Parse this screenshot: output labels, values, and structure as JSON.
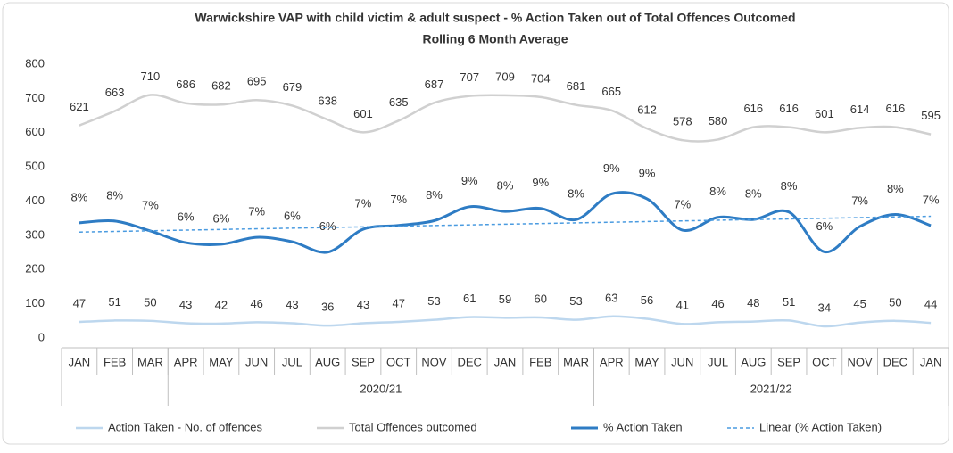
{
  "chart_data": {
    "type": "line",
    "title": "Warwickshire VAP with child victim & adult suspect - % Action Taken out of Total Offences Outcomed",
    "subtitle": "Rolling 6 Month Average",
    "categories": [
      "JAN",
      "FEB",
      "MAR",
      "APR",
      "MAY",
      "JUN",
      "JUL",
      "AUG",
      "SEP",
      "OCT",
      "NOV",
      "DEC",
      "JAN",
      "FEB",
      "MAR",
      "APR",
      "MAY",
      "JUN",
      "JUL",
      "AUG",
      "SEP",
      "OCT",
      "NOV",
      "DEC",
      "JAN"
    ],
    "groups": [
      {
        "label": "2020/21",
        "start": 3,
        "end": 14
      },
      {
        "label": "2021/22",
        "start": 15,
        "end": 24
      }
    ],
    "ylim": [
      0,
      800
    ],
    "yticks": [
      0,
      100,
      200,
      300,
      400,
      500,
      600,
      700,
      800
    ],
    "y2lim": [
      0,
      18
    ],
    "series": [
      {
        "name": "Action Taken - No. of offences",
        "color": "#bdd7ee",
        "values": [
          47,
          51,
          50,
          43,
          42,
          46,
          43,
          36,
          43,
          47,
          53,
          61,
          59,
          60,
          53,
          63,
          56,
          41,
          46,
          48,
          51,
          34,
          45,
          50,
          44
        ]
      },
      {
        "name": "Total Offences outcomed",
        "color": "#d0d0d0",
        "values": [
          621,
          663,
          710,
          686,
          682,
          695,
          679,
          638,
          601,
          635,
          687,
          707,
          709,
          704,
          681,
          665,
          612,
          578,
          580,
          616,
          616,
          601,
          614,
          616,
          595
        ]
      },
      {
        "name": "% Action Taken",
        "color": "#2e7cc4",
        "axis": "y2",
        "values": [
          7.57,
          7.69,
          7.04,
          6.27,
          6.16,
          6.62,
          6.33,
          5.64,
          7.15,
          7.4,
          7.71,
          8.63,
          8.32,
          8.52,
          7.78,
          9.47,
          9.15,
          7.09,
          7.93,
          7.79,
          8.28,
          5.66,
          7.33,
          8.12,
          7.39
        ],
        "value_labels": [
          "8%",
          "8%",
          "7%",
          "6%",
          "6%",
          "7%",
          "6%",
          "6%",
          "7%",
          "7%",
          "8%",
          "9%",
          "8%",
          "9%",
          "8%",
          "9%",
          "9%",
          "7%",
          "8%",
          "8%",
          "8%",
          "6%",
          "7%",
          "8%",
          "7%"
        ],
        "trendline": {
          "name": "Linear (% Action Taken)",
          "color": "#4a9be0"
        }
      }
    ]
  }
}
